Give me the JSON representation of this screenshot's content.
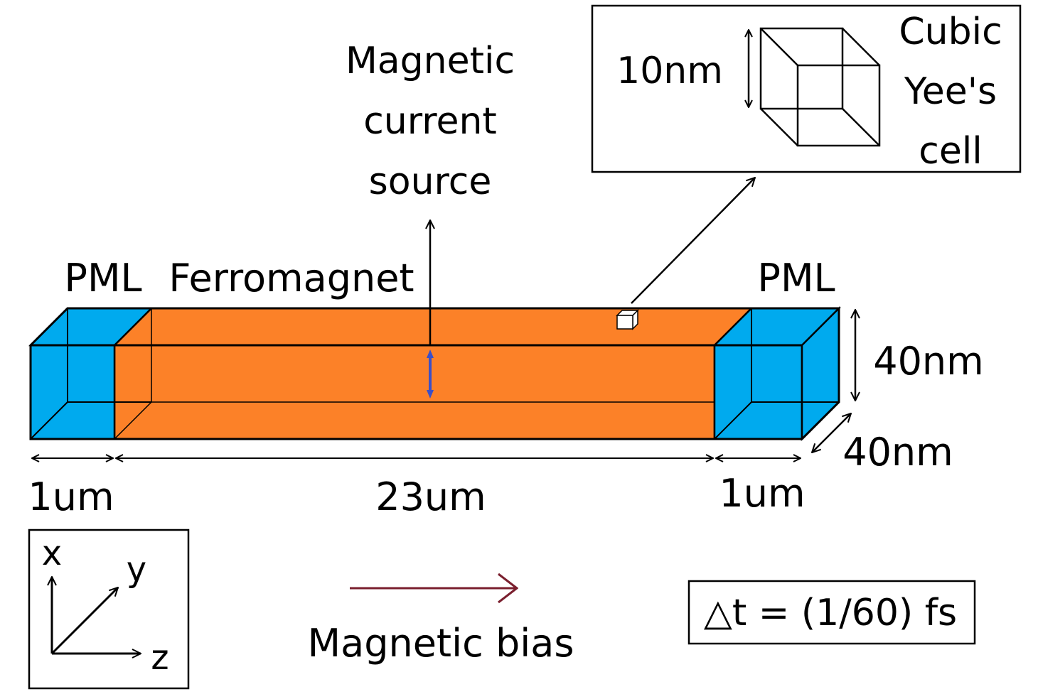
{
  "source_label": [
    "Magnetic",
    "current",
    "source"
  ],
  "cell_inset": {
    "size_label": "10nm",
    "title": [
      "Cubic",
      "Yee's",
      "cell"
    ]
  },
  "regions": {
    "pml_left": "PML",
    "ferromagnet": "Ferromagnet",
    "pml_right": "PML"
  },
  "dimensions": {
    "height": "40nm",
    "depth": "40nm",
    "pml_left_length": "1um",
    "ferro_length": "23um",
    "pml_right_length": "1um"
  },
  "axes": {
    "x": "x",
    "y": "y",
    "z": "z"
  },
  "bias_label": "Magnetic bias",
  "timestep": "△t = (1/60) fs",
  "colors": {
    "pml": "#00aaee",
    "ferromagnet": "#fc8128",
    "source_arrow": "#3b4fc8",
    "bias_arrow": "#7a1f2e",
    "stroke": "#000000"
  }
}
